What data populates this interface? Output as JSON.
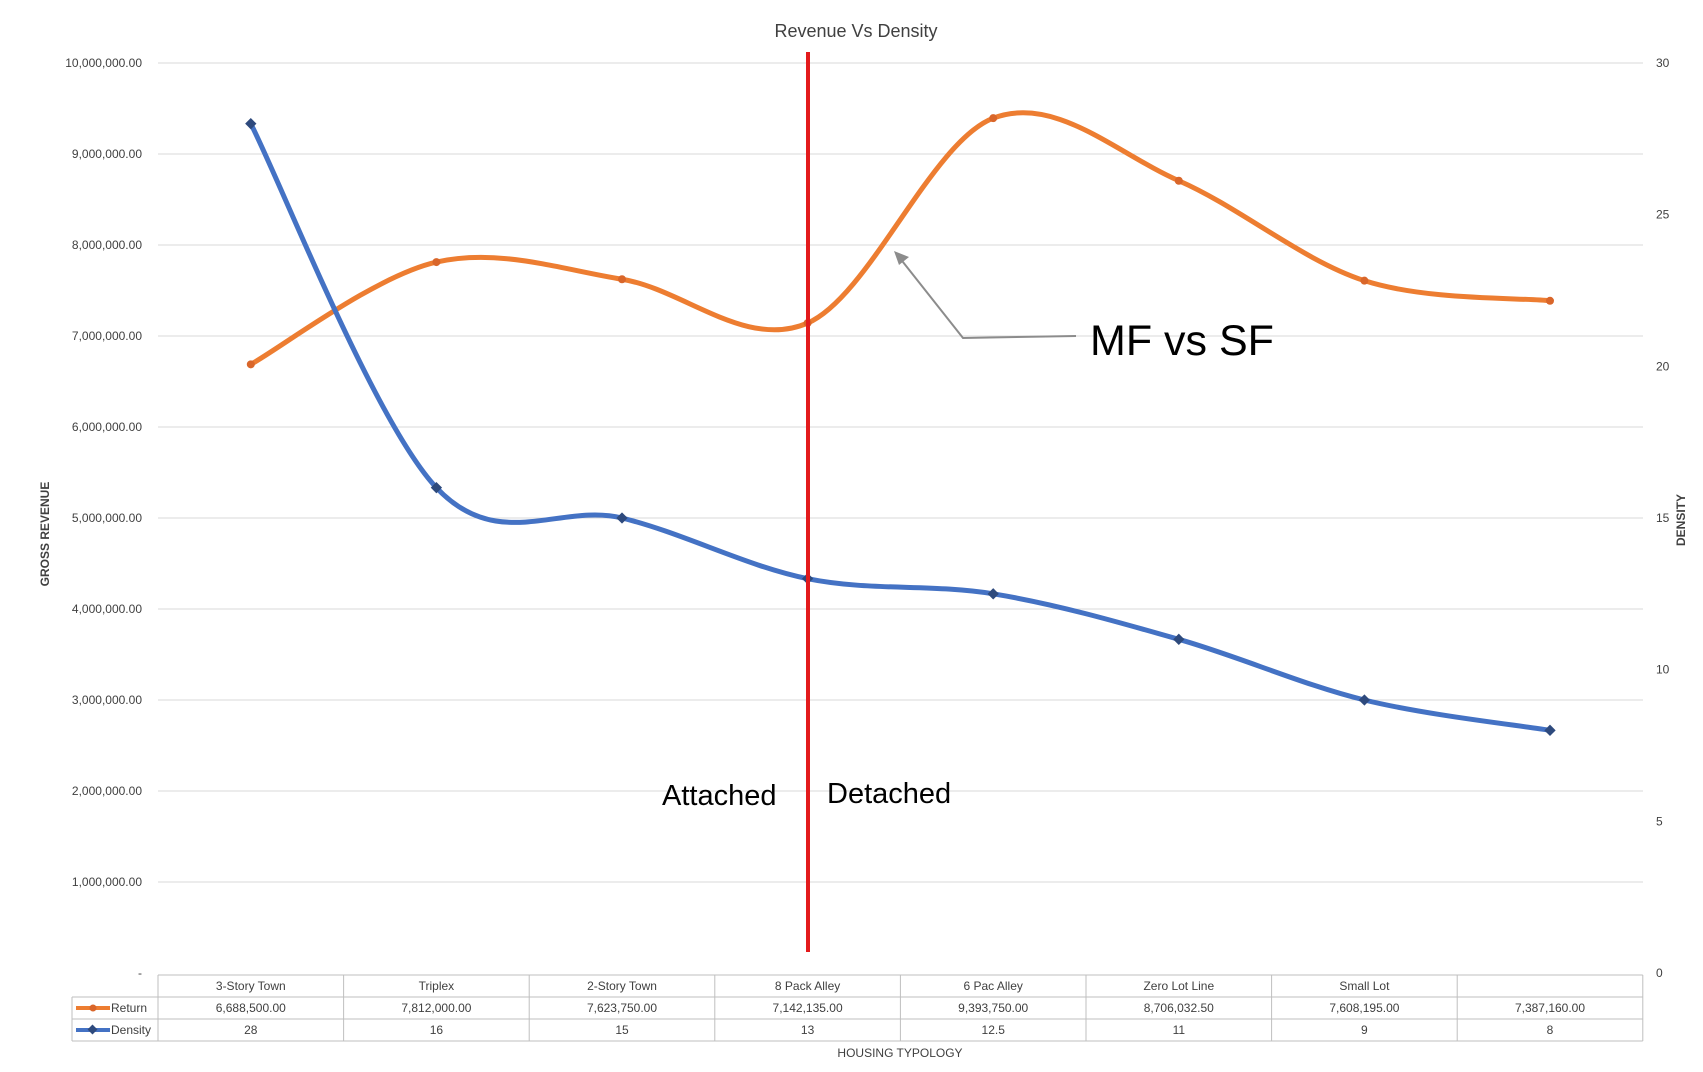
{
  "chart_data": {
    "type": "line",
    "title": "Revenue Vs Density",
    "xlabel": "HOUSING TYPOLOGY",
    "ylabel": "GROSS REVENUE",
    "y2label": "DENSITY",
    "categories": [
      "3-Story Town",
      "Triplex",
      "2-Story Town",
      "8 Pack Alley",
      "6 Pac Alley",
      "Zero Lot Line",
      "Small Lot",
      ""
    ],
    "ylim": [
      0,
      10000000
    ],
    "y2lim": [
      0,
      30
    ],
    "yticks": [
      "-",
      "1,000,000.00",
      "2,000,000.00",
      "3,000,000.00",
      "4,000,000.00",
      "5,000,000.00",
      "6,000,000.00",
      "7,000,000.00",
      "8,000,000.00",
      "9,000,000.00",
      "10,000,000.00"
    ],
    "y2ticks": [
      "0",
      "5",
      "10",
      "15",
      "20",
      "25",
      "30"
    ],
    "grid": true,
    "legend": "data-table",
    "series": [
      {
        "name": "Return",
        "axis": "left",
        "color": "#ED7D31",
        "values": [
          6688500,
          7812000,
          7623750,
          7142135,
          9393750,
          8706032.5,
          7608195,
          7387160
        ],
        "labels": [
          "6,688,500.00",
          "7,812,000.00",
          "7,623,750.00",
          "7,142,135.00",
          "9,393,750.00",
          "8,706,032.50",
          "7,608,195.00",
          "7,387,160.00"
        ]
      },
      {
        "name": "Density",
        "axis": "right",
        "color": "#4472C4",
        "values": [
          28,
          16,
          15,
          13,
          12.5,
          11,
          9,
          8
        ],
        "labels": [
          "28",
          "16",
          "15",
          "13",
          "12.5",
          "11",
          "9",
          "8"
        ]
      }
    ],
    "annotations": {
      "arrow_text": "MF vs SF",
      "divider_left": "Attached",
      "divider_right": "Detached",
      "divider_color": "#E31A1C",
      "arrow_color": "#8C8C8C"
    }
  }
}
